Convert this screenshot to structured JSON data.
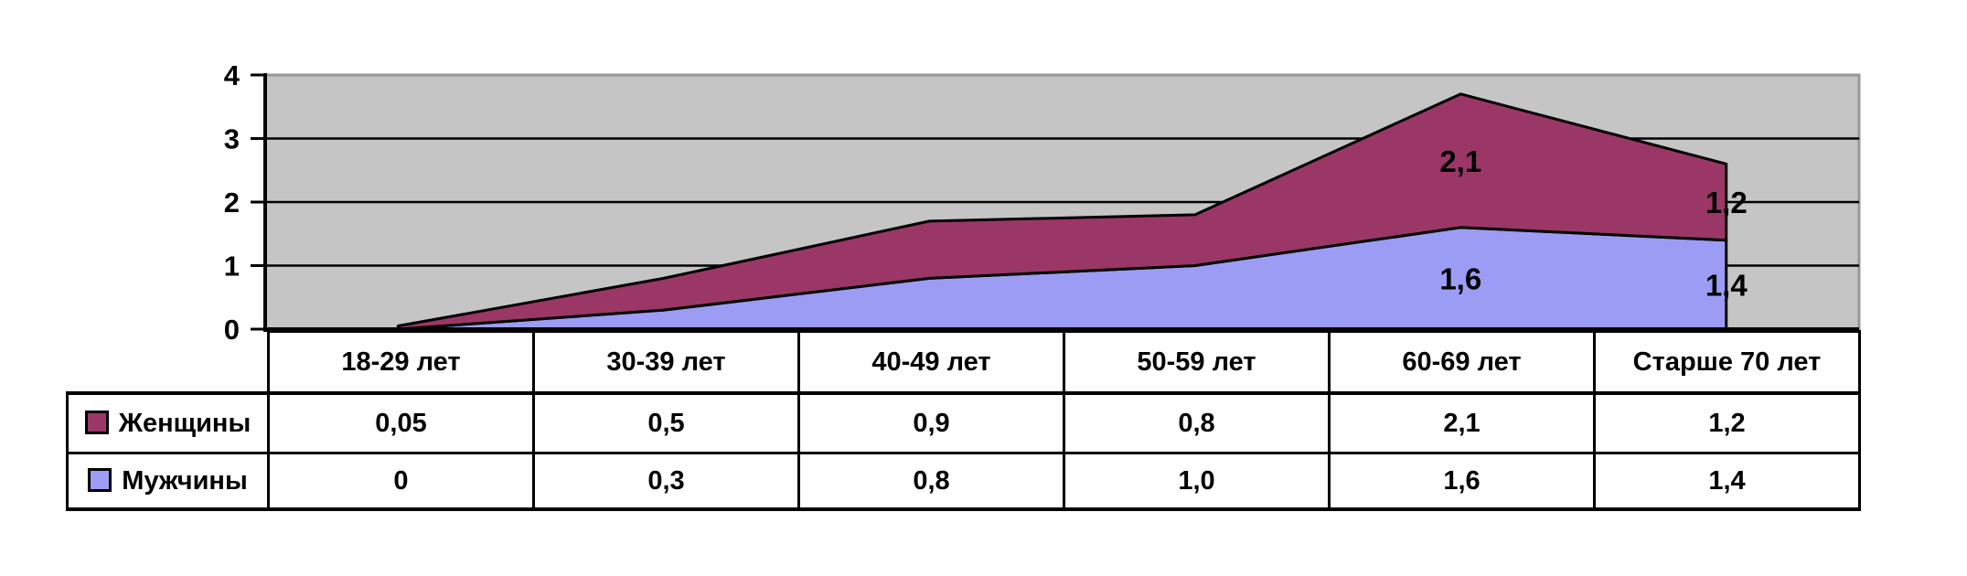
{
  "chart_data": {
    "type": "area",
    "stacked": true,
    "categories": [
      "18-29 лет",
      "30-39 лет",
      "40-49 лет",
      "50-59 лет",
      "60-69 лет",
      "Старше 70 лет"
    ],
    "series": [
      {
        "name": "Женщины",
        "color": "#9B3766",
        "values": [
          0.05,
          0.5,
          0.9,
          0.8,
          2.1,
          1.2
        ],
        "display_values": [
          "0,05",
          "0,5",
          "0,9",
          "0,8",
          "2,1",
          "1,2"
        ]
      },
      {
        "name": "Мужчины",
        "color": "#9C9CF5",
        "values": [
          0,
          0.3,
          0.8,
          1.0,
          1.6,
          1.4
        ],
        "display_values": [
          "0",
          "0,3",
          "0,8",
          "1,0",
          "1,6",
          "1,4"
        ]
      }
    ],
    "stack_order_bottom_to_top": [
      1,
      0
    ],
    "ylim": [
      0,
      4
    ],
    "yticks": [
      0,
      1,
      2,
      3,
      4
    ],
    "grid": true,
    "legend_position": "table-row-headers",
    "data_labels": [
      {
        "series_index": 0,
        "point_index": 4,
        "text": "2,1"
      },
      {
        "series_index": 0,
        "point_index": 5,
        "text": "1,2"
      },
      {
        "series_index": 1,
        "point_index": 4,
        "text": "1,6"
      },
      {
        "series_index": 1,
        "point_index": 5,
        "text": "1,4"
      }
    ],
    "colors": {
      "plot_background": "#C5C5C5",
      "plot_border": "#979797",
      "gridline": "#000000",
      "axis": "#000000",
      "outline": "#000000"
    }
  }
}
